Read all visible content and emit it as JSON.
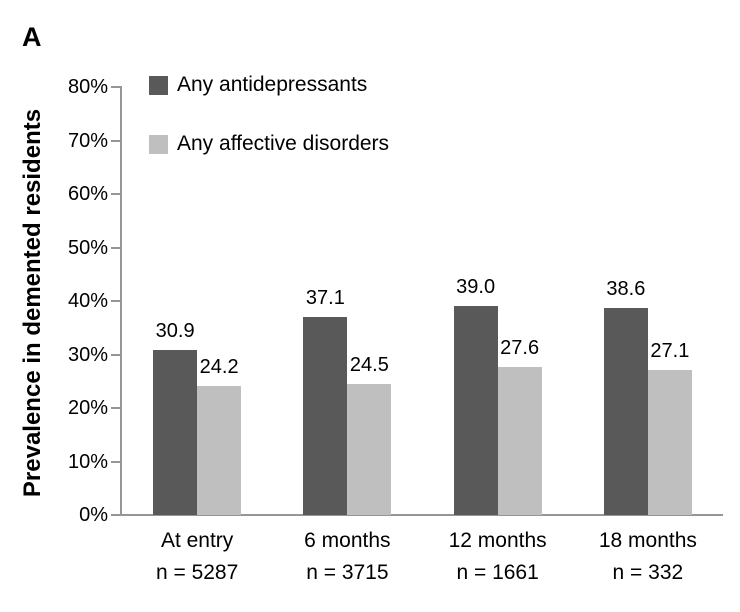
{
  "panel_label": "A",
  "colors": {
    "series_dark": "#595959",
    "series_light": "#bfbfbf",
    "axis": "#969696",
    "text": "#000000",
    "background": "#ffffff"
  },
  "chart_data": {
    "type": "bar",
    "title": "",
    "xlabel": "",
    "ylabel": "Prevalence in demented residents",
    "ylim": [
      0,
      80
    ],
    "ytick_step": 10,
    "ytick_labels": [
      "0%",
      "10%",
      "20%",
      "30%",
      "40%",
      "50%",
      "60%",
      "70%",
      "80%"
    ],
    "grid": false,
    "legend_position": "top-left-inside",
    "value_labels": true,
    "categories": [
      "At entry",
      "6 months",
      "12 months",
      "18 months"
    ],
    "category_sublabels": [
      "n = 5287",
      "n = 3715",
      "n = 1661",
      "n = 332"
    ],
    "series": [
      {
        "name": "Any antidepressants",
        "color": "#595959",
        "values": [
          30.9,
          37.1,
          39.0,
          38.6
        ]
      },
      {
        "name": "Any affective disorders",
        "color": "#bfbfbf",
        "values": [
          24.2,
          24.5,
          27.6,
          27.1
        ]
      }
    ]
  }
}
